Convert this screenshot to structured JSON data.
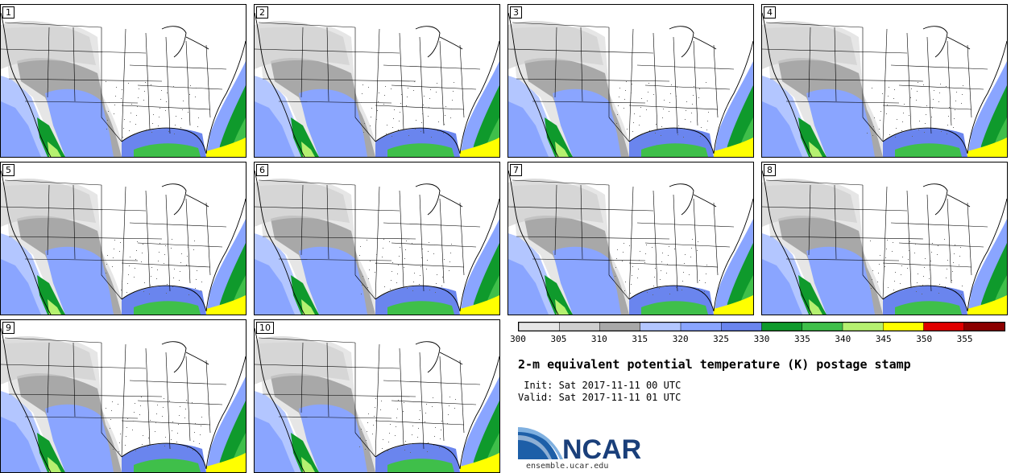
{
  "panels": [
    {
      "label": "1"
    },
    {
      "label": "2"
    },
    {
      "label": "3"
    },
    {
      "label": "4"
    },
    {
      "label": "5"
    },
    {
      "label": "6"
    },
    {
      "label": "7"
    },
    {
      "label": "8"
    },
    {
      "label": "9"
    },
    {
      "label": "10"
    }
  ],
  "colorbar": {
    "labels": [
      "300",
      "305",
      "310",
      "315",
      "320",
      "325",
      "330",
      "335",
      "340",
      "345",
      "350",
      "355"
    ],
    "colors": [
      "#e6e6e6",
      "#cfcfcf",
      "#a8a8a8",
      "#b3c6ff",
      "#8aa5ff",
      "#6a85ee",
      "#0f9a2c",
      "#3fbf4a",
      "#b5f070",
      "#ffff00",
      "#e00000",
      "#8b0000"
    ]
  },
  "title": "2-m equivalent potential temperature (K) postage stamp",
  "init": " Init: Sat 2017-11-11 00 UTC",
  "valid": "Valid: Sat 2017-11-11 01 UTC",
  "logo": {
    "text": "NCAR",
    "site": "ensemble.ucar.edu"
  }
}
